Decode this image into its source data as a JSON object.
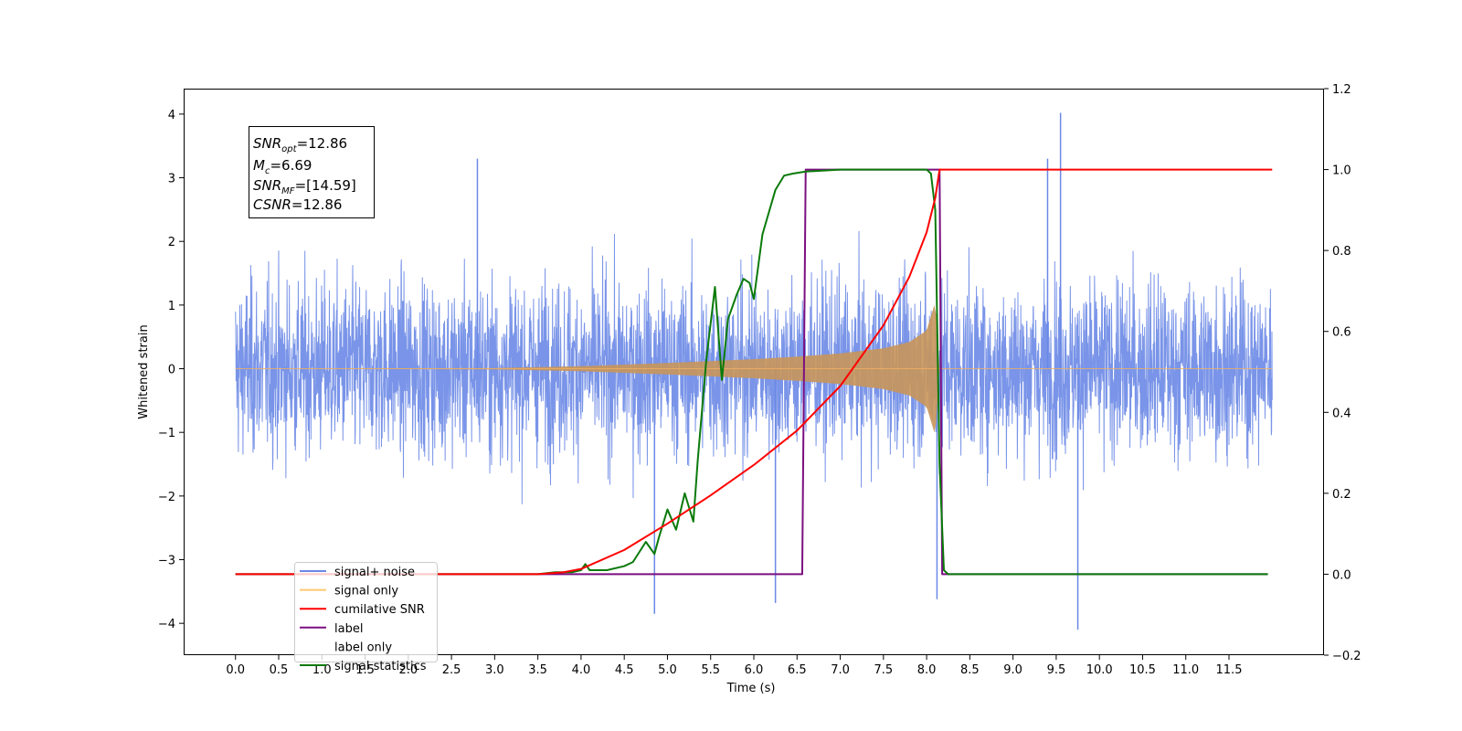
{
  "chart_data": {
    "type": "line",
    "xlabel": "Time (s)",
    "ylabel_left": "Whitened strain",
    "ylabel_right": "",
    "xlim": [
      -0.6,
      12.6
    ],
    "ylim_left": [
      -4.5,
      4.4
    ],
    "ylim_right": [
      -0.2,
      1.2
    ],
    "x_ticks": [
      "0.0",
      "0.5",
      "1.0",
      "1.5",
      "2.0",
      "2.5",
      "3.0",
      "3.5",
      "4.0",
      "4.5",
      "5.0",
      "5.5",
      "6.0",
      "6.5",
      "7.0",
      "7.5",
      "8.0",
      "8.5",
      "9.0",
      "9.5",
      "10.0",
      "10.5",
      "11.0",
      "11.5"
    ],
    "y_ticks_left": [
      "4",
      "3",
      "2",
      "1",
      "0",
      "−1",
      "−2",
      "−3",
      "−4"
    ],
    "y_ticks_right": [
      "1.2",
      "1.0",
      "0.8",
      "0.6",
      "0.4",
      "0.2",
      "0.0",
      "−0.2"
    ],
    "grid": false,
    "legend_position": "lower-left",
    "annotation": {
      "line1_sym": "SNR",
      "line1_sub": "opt",
      "line1_val": "=12.86",
      "line2_sym": "M",
      "line2_sub": "c",
      "line2_val": "=6.69",
      "line3_sym": "SNR",
      "line3_sub": "MF",
      "line3_val": "=[14.59]",
      "line4_sym": "CSNR",
      "line4_val": "=12.86"
    },
    "series": [
      {
        "name": "signal+ noise",
        "color": "#6a88e6",
        "axis": "left",
        "description_visible": "dense noise band, envelope approx ±2.3",
        "x_range": [
          0.0,
          12.0
        ],
        "approx_envelope": 2.3,
        "max_spikes": [
          [
            2.8,
            3.3
          ],
          [
            9.4,
            3.3
          ],
          [
            9.55,
            4.02
          ],
          [
            4.85,
            -3.85
          ],
          [
            9.75,
            -4.1
          ],
          [
            6.25,
            -3.68
          ],
          [
            8.12,
            -3.62
          ]
        ]
      },
      {
        "name": "signal only",
        "color": "#c8955a",
        "axis": "left",
        "envelope": {
          "t": [
            0.0,
            3.0,
            4.0,
            5.0,
            5.5,
            6.0,
            6.5,
            7.0,
            7.5,
            7.8,
            8.0,
            8.1,
            8.15
          ],
          "a": [
            0.0,
            0.01,
            0.04,
            0.09,
            0.12,
            0.15,
            0.19,
            0.24,
            0.32,
            0.42,
            0.6,
            1.05,
            0.0
          ]
        },
        "x_range": [
          0.0,
          12.0
        ]
      },
      {
        "name": "cumilative SNR",
        "color": "#ff0000",
        "axis": "right",
        "x": [
          0.0,
          3.5,
          3.8,
          4.0,
          4.5,
          5.0,
          5.5,
          6.0,
          6.5,
          7.0,
          7.5,
          7.8,
          8.0,
          8.1,
          8.15,
          12.0
        ],
        "y": [
          0.0,
          0.0,
          0.005,
          0.013,
          0.06,
          0.125,
          0.195,
          0.27,
          0.355,
          0.465,
          0.615,
          0.735,
          0.845,
          0.93,
          1.0,
          1.0
        ]
      },
      {
        "name": "label",
        "color": "#7b0f80",
        "axis": "right",
        "x": [
          0.0,
          6.56,
          6.6,
          8.15,
          8.18,
          11.95
        ],
        "y": [
          0.0,
          0.0,
          1.0,
          1.0,
          0.0,
          0.0
        ]
      },
      {
        "name": "label only",
        "color": "#ffffff",
        "axis": "right",
        "x": [],
        "y": []
      },
      {
        "name": "signal statistics",
        "color": "#0a7a0a",
        "axis": "right",
        "x": [
          0.0,
          3.5,
          3.7,
          3.9,
          4.0,
          4.05,
          4.1,
          4.3,
          4.5,
          4.6,
          4.75,
          4.85,
          4.9,
          5.0,
          5.1,
          5.2,
          5.3,
          5.35,
          5.45,
          5.55,
          5.63,
          5.7,
          5.8,
          5.88,
          5.95,
          6.0,
          6.1,
          6.25,
          6.35,
          6.45,
          6.6,
          7.0,
          7.5,
          8.0,
          8.05,
          8.1,
          8.15,
          8.2,
          8.25,
          11.95
        ],
        "y": [
          0.0,
          0.0,
          0.005,
          0.005,
          0.01,
          0.025,
          0.01,
          0.01,
          0.02,
          0.03,
          0.08,
          0.05,
          0.09,
          0.16,
          0.11,
          0.2,
          0.13,
          0.28,
          0.53,
          0.71,
          0.48,
          0.63,
          0.69,
          0.73,
          0.72,
          0.68,
          0.84,
          0.95,
          0.985,
          0.99,
          0.995,
          1.0,
          1.0,
          1.0,
          0.99,
          0.9,
          0.27,
          0.01,
          0.0,
          0.0
        ]
      }
    ]
  }
}
